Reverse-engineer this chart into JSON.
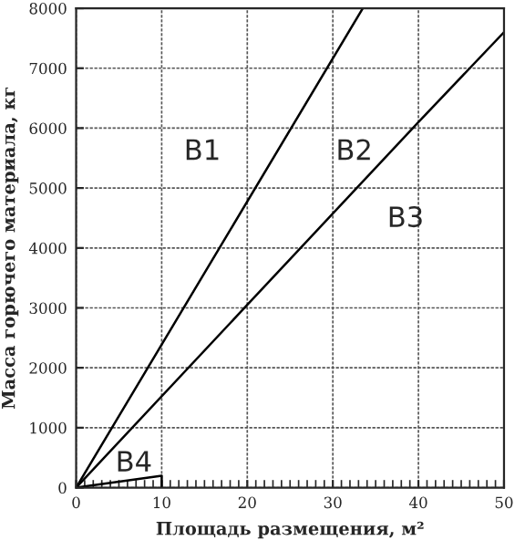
{
  "chart_data": {
    "type": "line",
    "xlabel": "Площадь размещения, м²",
    "ylabel": "Масса горючего материала, кг",
    "series": [
      {
        "color": "#000000",
        "x": [
          0,
          33.5
        ],
        "values": [
          0,
          8000
        ]
      },
      {
        "color": "#000000",
        "x": [
          0,
          20,
          40,
          50
        ],
        "values": [
          0,
          3050,
          6100,
          7600
        ]
      },
      {
        "color": "#000000",
        "x": [
          0,
          10,
          10
        ],
        "values": [
          0,
          200,
          0
        ]
      }
    ],
    "annotations": [
      "B1",
      "B2",
      "B3",
      "B4"
    ],
    "xlim": [
      0,
      50
    ],
    "ylim": [
      0,
      8000
    ],
    "xticks": [
      0,
      10,
      20,
      30,
      40,
      50
    ],
    "yticks": [
      0,
      1000,
      2000,
      3000,
      4000,
      5000,
      6000,
      7000,
      8000
    ],
    "grid": true,
    "marker": "none",
    "line_style": "solid"
  }
}
